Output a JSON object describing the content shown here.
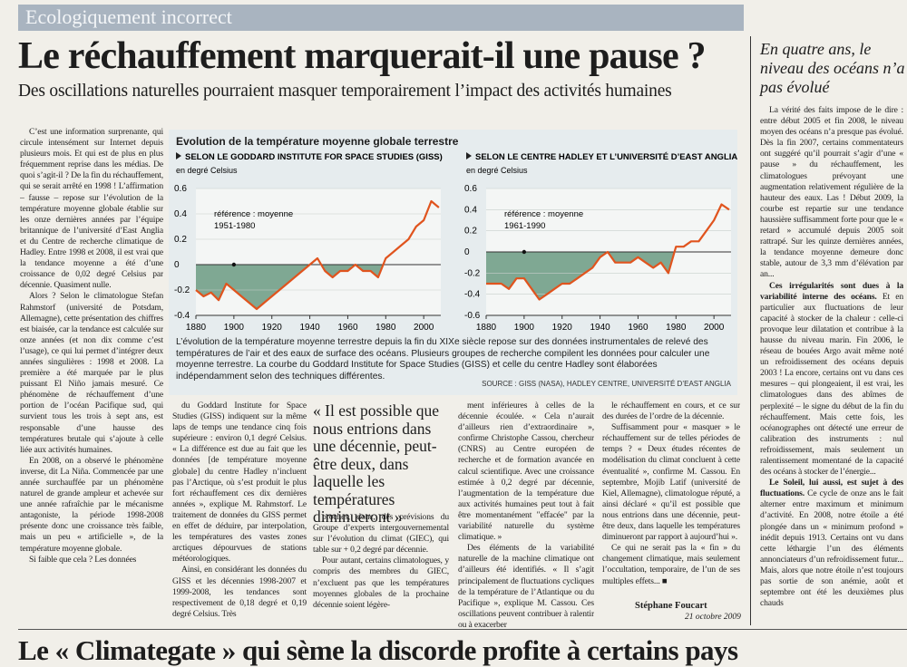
{
  "header": {
    "rubric": "Ecologiquement incorrect",
    "title": "Le réchauffement marquerait-il une pause ?",
    "subtitle": "Des oscillations naturelles pourraient masquer temporairement l’impact des activités humaines"
  },
  "figure": {
    "title": "Evolution de la température moyenne globale terrestre",
    "caption": "L’évolution de la température moyenne terrestre depuis la fin du XIXe siècle repose sur des données instrumentales de relevé des températures de l’air et des eaux de surface des océans. Plusieurs groupes de recherche compilent les données pour calculer une moyenne terrestre. La courbe du Goddard Institute for Space Studies (GISS) et celle du centre Hadley sont élaborées indépendamment selon des techniques différentes.",
    "source": "SOURCE : GISS (NASA), HADLEY CENTRE, UNIVERSITÉ D’EAST ANGLIA"
  },
  "chart_data": [
    {
      "type": "line",
      "title": "SELON LE GODDARD INSTITUTE FOR SPACE STUDIES (GISS)",
      "y_label": "en degré Celsius",
      "annotation": [
        "référence : moyenne",
        "1951-1980"
      ],
      "x": [
        1880,
        1884,
        1888,
        1892,
        1896,
        1900,
        1904,
        1908,
        1912,
        1916,
        1920,
        1924,
        1928,
        1932,
        1936,
        1940,
        1944,
        1948,
        1952,
        1956,
        1960,
        1964,
        1968,
        1972,
        1976,
        1980,
        1984,
        1988,
        1992,
        1996,
        2000,
        2004,
        2008
      ],
      "series": [
        {
          "color": "#e0541e",
          "values": [
            -0.2,
            -0.25,
            -0.22,
            -0.28,
            -0.15,
            -0.2,
            -0.25,
            -0.3,
            -0.35,
            -0.3,
            -0.25,
            -0.2,
            -0.15,
            -0.1,
            -0.05,
            0.0,
            0.05,
            -0.05,
            -0.1,
            -0.05,
            -0.05,
            0.0,
            -0.05,
            -0.05,
            -0.1,
            0.05,
            0.1,
            0.15,
            0.2,
            0.3,
            0.35,
            0.5,
            0.45
          ]
        }
      ],
      "xlim": [
        1880,
        2009
      ],
      "xticks": [
        1880,
        1900,
        1920,
        1940,
        1960,
        1980,
        2000
      ],
      "ylim": [
        -0.4,
        0.6
      ],
      "yticks": [
        0.6,
        0.4,
        0.2,
        0,
        -0.2,
        -0.4
      ],
      "grid": true,
      "fill_color": "#7fa893"
    },
    {
      "type": "line",
      "title": "SELON LE CENTRE HADLEY ET L’UNIVERSITÉ D’EAST ANGLIA",
      "y_label": "en degré Celsius",
      "annotation": [
        "référence : moyenne",
        "1961-1990"
      ],
      "x": [
        1880,
        1884,
        1888,
        1892,
        1896,
        1900,
        1904,
        1908,
        1912,
        1916,
        1920,
        1924,
        1928,
        1932,
        1936,
        1940,
        1944,
        1948,
        1952,
        1956,
        1960,
        1964,
        1968,
        1972,
        1976,
        1980,
        1984,
        1988,
        1992,
        1996,
        2000,
        2004,
        2008
      ],
      "series": [
        {
          "color": "#e0541e",
          "values": [
            -0.3,
            -0.3,
            -0.3,
            -0.35,
            -0.25,
            -0.25,
            -0.35,
            -0.45,
            -0.4,
            -0.35,
            -0.3,
            -0.3,
            -0.25,
            -0.2,
            -0.15,
            -0.05,
            0.0,
            -0.1,
            -0.1,
            -0.1,
            -0.05,
            -0.1,
            -0.15,
            -0.1,
            -0.2,
            0.05,
            0.05,
            0.1,
            0.1,
            0.2,
            0.3,
            0.45,
            0.4
          ]
        }
      ],
      "xlim": [
        1880,
        2009
      ],
      "xticks": [
        1880,
        1900,
        1920,
        1940,
        1960,
        1980,
        2000
      ],
      "ylim": [
        -0.6,
        0.6
      ],
      "yticks": [
        0.6,
        0.4,
        0.2,
        0,
        -0.2,
        -0.4,
        -0.6
      ],
      "grid": true,
      "fill_color": "#7fa893"
    }
  ],
  "article": {
    "columns": [
      [
        "C’est une information surprenante, qui circule intensément sur Internet depuis plusieurs mois. Et qui est de plus en plus fréquemment reprise dans les médias. De quoi s’agit-il ? De la fin du réchauffement, qui se serait arrêté en 1998 ! L’affirmation – fausse – repose sur l’évolution de la température moyenne globale établie sur les onze dernières années par l’équipe britannique de l’université d’East Anglia et du Centre de recherche climatique de Hadley. Entre 1998 et 2008, il est vrai que la tendance moyenne a été d’une croissance de 0,02 degré Celsius par décennie. Quasiment nulle.",
        "Alors ? Selon le climatologue Stefan Rahmstorf (université de Potsdam, Allemagne), cette présentation des chiffres est biaisée, car la tendance est calculée sur onze années (et non dix comme c’est l’usage), ce qui lui permet d’intégrer deux années singulières : 1998 et 2008. La première a été marquée par le plus puissant El Niño jamais mesuré. Ce phénomène de réchauffement d’une portion de l’océan Pacifique sud, qui survient tous les trois à sept ans, est responsable d’une hausse des températures brutale qui s’ajoute à celle liée aux activités humaines.",
        "En 2008, on a observé le phénomène inverse, dit La Niña. Commencée par une année surchauffée par un phénomène naturel de grande ampleur et achevée sur une année rafraîchie par le mécanisme antagoniste, la période 1998-2008 présente donc une croissance très faible, mais un peu « artificielle », de la température moyenne globale.",
        "Si faible que cela ? Les données"
      ],
      [
        "du Goddard Institute for Space Studies (GISS) indiquent sur la même laps de temps une tendance cinq fois supérieure : environ 0,1 degré Celsius. « La différence est due au fait que les données [de température moyenne globale] du centre Hadley n’incluent pas l’Arctique, où s’est produit le plus fort réchauffement ces dix dernières années », explique M. Rahmstorf. Le traitement de données du GISS permet en effet de déduire, par interpolation, les températures des vastes zones arctiques dépourvues de stations météorologiques.",
        "Ainsi, en considérant les données du GISS et les décennies 1998-2007 et 1999-2008, les tendances sont respectivement de 0,18 degré et 0,19 degré Celsius. Très"
      ],
      [
        "proches, donc, des prévisions du Groupe d’experts intergouvernemental sur l’évolution du climat (GIEC), qui table sur + 0,2 degré par décennie.",
        "Pour autant, certains climatologues, y compris des membres du GIEC, n’excluent pas que les températures moyennes globales de la prochaine décennie soient légère-"
      ],
      [
        "ment inférieures à celles de la décennie écoulée. « Cela n’aurait d’ailleurs rien d’extraordinaire », confirme Christophe Cassou, chercheur (CNRS) au Centre européen de recherche et de formation avancée en calcul scientifique. Avec une croissance estimée à 0,2 degré par décennie, l’augmentation de la température due aux activités humaines peut tout à fait être momentanément \"effacée\" par la variabilité naturelle du système climatique. »",
        "Des éléments de la variabilité naturelle de la machine climatique ont d’ailleurs été identifiés. « Il s’agit principalement de fluctuations cycliques de la température de l’Atlantique ou du Pacifique », explique M. Cassou. Ces oscillations peuvent contribuer à ralentir ou à exacerber"
      ],
      [
        "le réchauffement en cours, et ce sur des durées de l’ordre de la décennie.",
        "Suffisamment pour « masquer » le réchauffement sur de telles périodes de temps ? « Deux études récentes de modélisation du climat concluent à cette éventualité », confirme M. Cassou. En septembre, Mojib Latif (université de Kiel, Allemagne), climatologue réputé, a ainsi déclaré « qu’il est possible que nous entrions dans une décennie, peut-être deux, dans laquelle les températures diminueront par rapport à aujourd’hui ».",
        "Ce qui ne serait pas la « fin » du changement climatique, mais seulement l’occultation, temporaire, de l’un de ses multiples effets... ■"
      ]
    ],
    "quote": "« Il est possible que nous entrions dans une décennie, peut-être deux, dans laquelle les températures diminueront »",
    "author": "Stéphane Foucart",
    "date": "21 octobre 2009"
  },
  "sidebar": {
    "title": "En quatre ans, le niveau des océans n’a pas évolué",
    "paragraphs": [
      {
        "text": "La vérité des faits impose de le dire : entre début 2005 et fin 2008, le niveau moyen des océans n’a presque pas évolué. Dès la fin 2007, certains commentateurs ont suggéré qu’il pourrait s’agir d’une « pause » du réchauffement, les climatologues prévoyant une augmentation relativement régulière de la hauteur des eaux. Las ! Début 2009, la courbe est repartie sur une tendance haussière suffisamment forte pour que le « retard » accumulé depuis 2005 soit rattrapé. Sur les quinze dernières années, la tendance moyenne demeure donc stable, autour de 3,3 mm d’élévation par an..."
      },
      {
        "lead": "Ces irrégularités sont dues à la variabilité interne des océans.",
        "text": "Et en particulier aux fluctuations de leur capacité à stocker de la chaleur : celle-ci provoque leur dilatation et contribue à la hausse du niveau marin. Fin 2006, le réseau de bouées Argo avait même noté un refroidissement des océans depuis 2003 ! La encore, certains ont vu dans ces mesures – qui plongeaient, il est vrai, les climatologues dans des abîmes de perplexité – le signe du début de la fin du réchauffement. Mais cette fois, les océanographes ont détecté une erreur de calibration des instruments : nul refroidissement, mais seulement un ralentissement momentané de la capacité des océans à stocker de l’énergie..."
      },
      {
        "lead": "Le Soleil, lui aussi, est sujet à des fluctuations.",
        "text": "Ce cycle de onze ans le fait alterner entre maximum et minimum d’activité. En 2008, notre étoile a été plongée dans un « minimum profond » inédit depuis 1913. Certains ont vu dans cette léthargie l’un des éléments annonciateurs d’un refroidissement futur... Mais, alors que notre étoile n’est toujours pas sortie de son anémie, août et septembre ont été les deuxièmes plus chauds"
      }
    ]
  },
  "footer": {
    "headline": "Le « Climategate » qui sème la discorde profite à certains pays"
  }
}
